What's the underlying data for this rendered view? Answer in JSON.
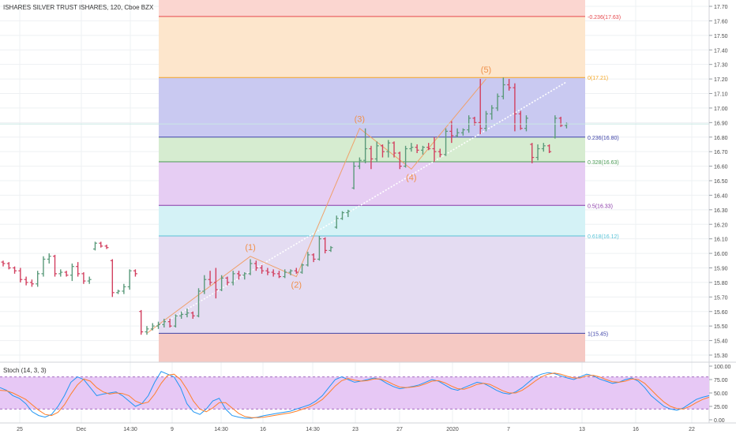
{
  "header": {
    "title": "ISHARES SILVER TRUST ISHARES, 120, Cboe BZX"
  },
  "chart_data": {
    "type": "ohlc-bar",
    "price_axis": {
      "range": [
        15.3,
        17.7
      ],
      "ticks": [
        "17.70",
        "17.60",
        "17.50",
        "17.40",
        "17.30",
        "17.20",
        "17.10",
        "17.00",
        "16.90",
        "16.80",
        "16.70",
        "16.60",
        "16.50",
        "16.40",
        "16.30",
        "16.20",
        "16.10",
        "16.00",
        "15.90",
        "15.80",
        "15.70",
        "15.60",
        "15.50",
        "15.40",
        "15.30"
      ]
    },
    "time_axis": {
      "labels": [
        "25",
        "Dec",
        "14:30",
        "9",
        "14:30",
        "16",
        "14:30",
        "23",
        "27",
        "2020",
        "7",
        "13",
        "16",
        "22"
      ]
    },
    "fib_levels": [
      {
        "ratio": -0.236,
        "price": 17.63,
        "label": "-0.236(17.63)",
        "color": "#e5484d",
        "fill": "#fbd6d0"
      },
      {
        "ratio": 0,
        "price": 17.21,
        "label": "0(17.21)",
        "color": "#f5a623",
        "fill": "#fde6cc"
      },
      {
        "ratio": 0.236,
        "price": 16.8,
        "label": "0.236(16.80)",
        "color": "#3f44a8",
        "fill": "#c9c9f1"
      },
      {
        "ratio": 0.328,
        "price": 16.63,
        "label": "0.328(16.63)",
        "color": "#4a9a55",
        "fill": "#d6ecd0"
      },
      {
        "ratio": 0.5,
        "price": 16.33,
        "label": "0.5(16.33)",
        "color": "#8a3aa8",
        "fill": "#e6cdf3"
      },
      {
        "ratio": 0.618,
        "price": 16.12,
        "label": "0.618(16.12)",
        "color": "#57c2d6",
        "fill": "#d4f2f6"
      },
      {
        "ratio": 1,
        "price": 15.45,
        "label": "1(15.45)",
        "color": "#3f44a8",
        "fill": "#e4dcf2"
      }
    ],
    "fib_bottom_fill": "#f5c9c4",
    "waves": [
      {
        "label": "(1)",
        "bar": 43,
        "price": 15.98
      },
      {
        "label": "(2)",
        "bar": 51,
        "price": 15.84
      },
      {
        "label": "(3)",
        "bar": 62,
        "price": 16.86
      },
      {
        "label": "(4)",
        "bar": 71,
        "price": 16.58
      },
      {
        "label": "(5)",
        "bar": 84,
        "price": 17.2
      }
    ],
    "trend_line": {
      "from": {
        "bar": 25,
        "price": 15.45
      },
      "to": {
        "bar": 98,
        "price": 17.18
      }
    },
    "last_price": 16.89,
    "bars": [
      [
        15.94,
        15.95,
        15.91,
        15.93
      ],
      [
        15.93,
        15.94,
        15.89,
        15.9
      ],
      [
        15.9,
        15.91,
        15.86,
        15.88
      ],
      [
        15.88,
        15.9,
        15.8,
        15.82
      ],
      [
        15.82,
        15.84,
        15.78,
        15.8
      ],
      [
        15.8,
        15.82,
        15.77,
        15.79
      ],
      [
        15.79,
        15.88,
        15.77,
        15.86
      ],
      [
        15.86,
        15.98,
        15.84,
        15.96
      ],
      [
        15.96,
        16.0,
        15.93,
        15.98
      ],
      [
        15.98,
        15.99,
        15.84,
        15.86
      ],
      [
        15.86,
        15.89,
        15.84,
        15.87
      ],
      [
        15.87,
        15.88,
        15.84,
        15.85
      ],
      [
        15.85,
        15.93,
        15.81,
        15.91
      ],
      [
        15.91,
        15.94,
        15.84,
        15.86
      ],
      [
        15.86,
        15.87,
        15.79,
        15.81
      ],
      [
        15.81,
        15.84,
        15.79,
        15.82
      ],
      [
        16.03,
        16.08,
        16.02,
        16.07
      ],
      [
        16.07,
        16.08,
        16.04,
        16.05
      ],
      [
        16.05,
        16.06,
        16.03,
        16.04
      ],
      [
        15.95,
        15.96,
        15.7,
        15.73
      ],
      [
        15.73,
        15.75,
        15.72,
        15.74
      ],
      [
        15.74,
        15.79,
        15.72,
        15.77
      ],
      [
        15.77,
        15.89,
        15.75,
        15.88
      ],
      [
        15.88,
        15.89,
        15.84,
        15.86
      ],
      [
        15.6,
        15.61,
        15.44,
        15.46
      ],
      [
        15.46,
        15.5,
        15.44,
        15.48
      ],
      [
        15.48,
        15.52,
        15.47,
        15.5
      ],
      [
        15.5,
        15.53,
        15.48,
        15.51
      ],
      [
        15.51,
        15.55,
        15.49,
        15.53
      ],
      [
        15.53,
        15.55,
        15.49,
        15.5
      ],
      [
        15.5,
        15.58,
        15.49,
        15.57
      ],
      [
        15.57,
        15.6,
        15.55,
        15.58
      ],
      [
        15.58,
        15.62,
        15.56,
        15.59
      ],
      [
        15.59,
        15.6,
        15.55,
        15.57
      ],
      [
        15.57,
        15.76,
        15.56,
        15.74
      ],
      [
        15.74,
        15.85,
        15.72,
        15.82
      ],
      [
        15.82,
        15.88,
        15.78,
        15.8
      ],
      [
        15.8,
        15.9,
        15.69,
        15.75
      ],
      [
        15.75,
        15.85,
        15.74,
        15.83
      ],
      [
        15.83,
        15.84,
        15.78,
        15.8
      ],
      [
        15.8,
        15.88,
        15.78,
        15.86
      ],
      [
        15.86,
        15.88,
        15.82,
        15.85
      ],
      [
        15.85,
        15.87,
        15.82,
        15.86
      ],
      [
        15.86,
        15.96,
        15.85,
        15.93
      ],
      [
        15.93,
        15.95,
        15.88,
        15.9
      ],
      [
        15.9,
        15.92,
        15.86,
        15.88
      ],
      [
        15.88,
        15.9,
        15.85,
        15.87
      ],
      [
        15.87,
        15.89,
        15.84,
        15.86
      ],
      [
        15.86,
        15.88,
        15.83,
        15.84
      ],
      [
        15.84,
        15.89,
        15.83,
        15.87
      ],
      [
        15.87,
        15.89,
        15.85,
        15.88
      ],
      [
        15.88,
        15.9,
        15.86,
        15.87
      ],
      [
        15.87,
        15.93,
        15.86,
        15.92
      ],
      [
        15.92,
        16.01,
        15.91,
        15.99
      ],
      [
        15.99,
        16.0,
        15.94,
        15.96
      ],
      [
        15.96,
        16.12,
        15.95,
        16.1
      ],
      [
        16.1,
        16.11,
        16.0,
        16.02
      ],
      [
        16.02,
        16.05,
        16.01,
        16.04
      ],
      [
        16.18,
        16.26,
        16.17,
        16.24
      ],
      [
        16.24,
        16.29,
        16.23,
        16.28
      ],
      [
        16.28,
        16.3,
        16.25,
        16.29
      ],
      [
        16.45,
        16.63,
        16.44,
        16.6
      ],
      [
        16.6,
        16.66,
        16.58,
        16.64
      ],
      [
        16.64,
        16.86,
        16.62,
        16.72
      ],
      [
        16.72,
        16.74,
        16.58,
        16.65
      ],
      [
        16.65,
        16.77,
        16.63,
        16.74
      ],
      [
        16.74,
        16.75,
        16.66,
        16.7
      ],
      [
        16.7,
        16.78,
        16.66,
        16.76
      ],
      [
        16.76,
        16.77,
        16.66,
        16.69
      ],
      [
        16.69,
        16.7,
        16.58,
        16.6
      ],
      [
        16.6,
        16.74,
        16.59,
        16.72
      ],
      [
        16.72,
        16.76,
        16.7,
        16.73
      ],
      [
        16.73,
        16.75,
        16.69,
        16.71
      ],
      [
        16.71,
        16.74,
        16.68,
        16.73
      ],
      [
        16.73,
        16.76,
        16.71,
        16.72
      ],
      [
        16.72,
        16.8,
        16.63,
        16.7
      ],
      [
        16.7,
        16.72,
        16.66,
        16.68
      ],
      [
        16.68,
        16.86,
        16.67,
        16.84
      ],
      [
        16.84,
        16.91,
        16.76,
        16.81
      ],
      [
        16.81,
        16.86,
        16.8,
        16.83
      ],
      [
        16.83,
        16.86,
        16.81,
        16.85
      ],
      [
        16.85,
        16.95,
        16.83,
        16.93
      ],
      [
        16.93,
        16.94,
        16.88,
        16.9
      ],
      [
        16.9,
        17.2,
        16.82,
        16.86
      ],
      [
        16.86,
        16.98,
        16.84,
        16.96
      ],
      [
        16.96,
        17.02,
        16.92,
        17.0
      ],
      [
        17.0,
        17.1,
        16.98,
        17.08
      ],
      [
        17.08,
        17.21,
        17.06,
        17.16
      ],
      [
        17.16,
        17.2,
        17.12,
        17.14
      ],
      [
        17.14,
        17.17,
        16.84,
        16.96
      ],
      [
        16.96,
        16.98,
        16.85,
        16.86
      ],
      [
        16.86,
        16.95,
        16.84,
        16.93
      ],
      [
        16.75,
        16.76,
        16.62,
        16.66
      ],
      [
        16.66,
        16.75,
        16.64,
        16.72
      ],
      [
        16.72,
        16.76,
        16.7,
        16.74
      ],
      [
        16.74,
        16.75,
        16.69,
        16.7
      ],
      [
        16.8,
        16.95,
        16.79,
        16.93
      ],
      [
        16.93,
        16.94,
        16.87,
        16.88
      ],
      [
        16.88,
        16.9,
        16.86,
        16.89
      ]
    ],
    "stoch": {
      "title": "Stoch (14, 3, 3)",
      "range": [
        0,
        100
      ],
      "ticks": [
        "100.00",
        "75.00",
        "50.00",
        "25.00",
        "0.00"
      ],
      "band": [
        20,
        80
      ],
      "k": [
        60,
        55,
        45,
        40,
        30,
        15,
        8,
        5,
        10,
        25,
        45,
        70,
        80,
        75,
        60,
        45,
        48,
        50,
        52,
        45,
        35,
        25,
        30,
        45,
        70,
        90,
        85,
        80,
        60,
        30,
        15,
        10,
        20,
        35,
        40,
        20,
        8,
        5,
        3,
        3,
        5,
        8,
        10,
        12,
        14,
        16,
        20,
        24,
        28,
        35,
        45,
        60,
        75,
        80,
        75,
        70,
        72,
        75,
        78,
        75,
        68,
        62,
        58,
        60,
        62,
        65,
        70,
        75,
        72,
        65,
        58,
        55,
        60,
        65,
        70,
        68,
        62,
        55,
        50,
        48,
        52,
        60,
        70,
        80,
        85,
        88,
        86,
        82,
        78,
        75,
        80,
        85,
        82,
        76,
        72,
        68,
        70,
        75,
        78,
        72,
        60,
        45,
        35,
        25,
        20,
        18,
        22,
        30,
        38,
        42,
        45
      ],
      "d": [
        55,
        54,
        50,
        44,
        38,
        28,
        18,
        10,
        8,
        14,
        28,
        48,
        65,
        76,
        72,
        60,
        52,
        48,
        50,
        49,
        45,
        35,
        30,
        33,
        48,
        68,
        83,
        85,
        75,
        57,
        35,
        20,
        15,
        22,
        32,
        32,
        22,
        12,
        6,
        4,
        4,
        5,
        7,
        9,
        11,
        13,
        16,
        20,
        24,
        30,
        38,
        50,
        63,
        73,
        77,
        74,
        72,
        73,
        76,
        76,
        72,
        66,
        61,
        60,
        61,
        63,
        67,
        72,
        73,
        69,
        63,
        58,
        57,
        61,
        66,
        68,
        66,
        60,
        54,
        50,
        50,
        55,
        63,
        72,
        80,
        85,
        87,
        85,
        81,
        78,
        78,
        82,
        83,
        80,
        75,
        71,
        70,
        72,
        76,
        75,
        68,
        56,
        44,
        33,
        25,
        21,
        20,
        25,
        32,
        38,
        42
      ]
    }
  }
}
